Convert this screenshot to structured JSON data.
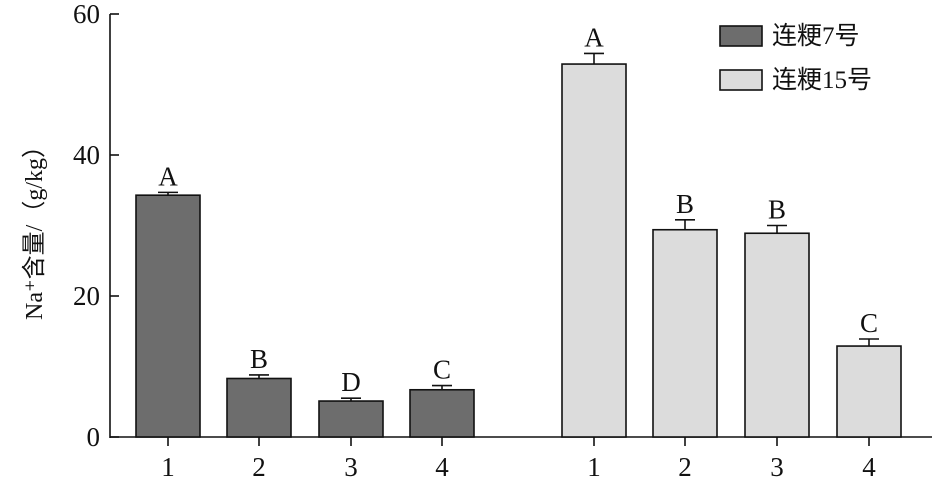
{
  "chart_data": {
    "type": "bar",
    "groups": [
      {
        "name": "连粳7号",
        "color": "#6d6d6d",
        "categories": [
          "1",
          "2",
          "3",
          "4"
        ],
        "values": [
          34.3,
          8.3,
          5.1,
          6.7
        ],
        "errors": [
          0.4,
          0.5,
          0.4,
          0.6
        ],
        "letters": [
          "A",
          "B",
          "D",
          "C"
        ]
      },
      {
        "name": "连粳15号",
        "color": "#dcdcdc",
        "categories": [
          "1",
          "2",
          "3",
          "4"
        ],
        "values": [
          52.9,
          29.4,
          28.9,
          12.9
        ],
        "errors": [
          1.5,
          1.4,
          1.1,
          1.0
        ],
        "letters": [
          "A",
          "B",
          "B",
          "C"
        ]
      }
    ],
    "ylabel": "Na⁺含量/（g/kg）",
    "ylim": [
      0,
      60
    ],
    "yticks": [
      "0",
      "20",
      "40",
      "60"
    ],
    "legend": {
      "position": "top-right",
      "entries": [
        {
          "label": "连粳7号",
          "color": "#6d6d6d"
        },
        {
          "label": "连粳15号",
          "color": "#dcdcdc"
        }
      ]
    },
    "grid": false
  }
}
